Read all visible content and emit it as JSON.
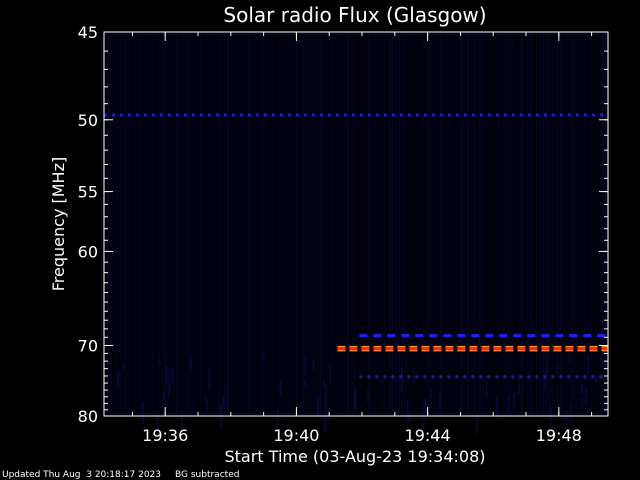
{
  "chart_data": {
    "type": "heatmap",
    "title": "Solar radio Flux (Glasgow)",
    "xlabel": "Start Time (03-Aug-23 19:34:08)",
    "ylabel": "Frequency [MHz]",
    "x_tick_labels": [
      "19:36",
      "19:40",
      "19:44",
      "19:48"
    ],
    "y_tick_labels": [
      "45",
      "50",
      "55",
      "60",
      "70",
      "80"
    ],
    "xlim": [
      "19:34:08",
      "19:49:30"
    ],
    "ylim": [
      45,
      80
    ],
    "colorscale": [
      "#000010",
      "#0000c0",
      "#ff0000",
      "#ffff00"
    ],
    "signals": [
      {
        "type": "band",
        "freq": 49.7,
        "start": "19:34:08",
        "end": "19:49:30",
        "level": "medium",
        "color": "#1a1ad6"
      },
      {
        "type": "band",
        "freq": 68.8,
        "start": "19:41:55",
        "end": "19:49:30",
        "level": "medium",
        "color": "#1e22ff"
      },
      {
        "type": "band",
        "freq": 70.4,
        "start": "19:41:15",
        "end": "19:49:30",
        "level": "high",
        "color": "#ff2a10"
      },
      {
        "type": "band",
        "freq": 74.1,
        "start": "19:41:55",
        "end": "19:49:30",
        "level": "low",
        "color": "#1a1ab4"
      }
    ]
  },
  "footer": {
    "updated": "Updated Thu Aug  3 20:18:17 2023",
    "note": "BG subtracted"
  }
}
